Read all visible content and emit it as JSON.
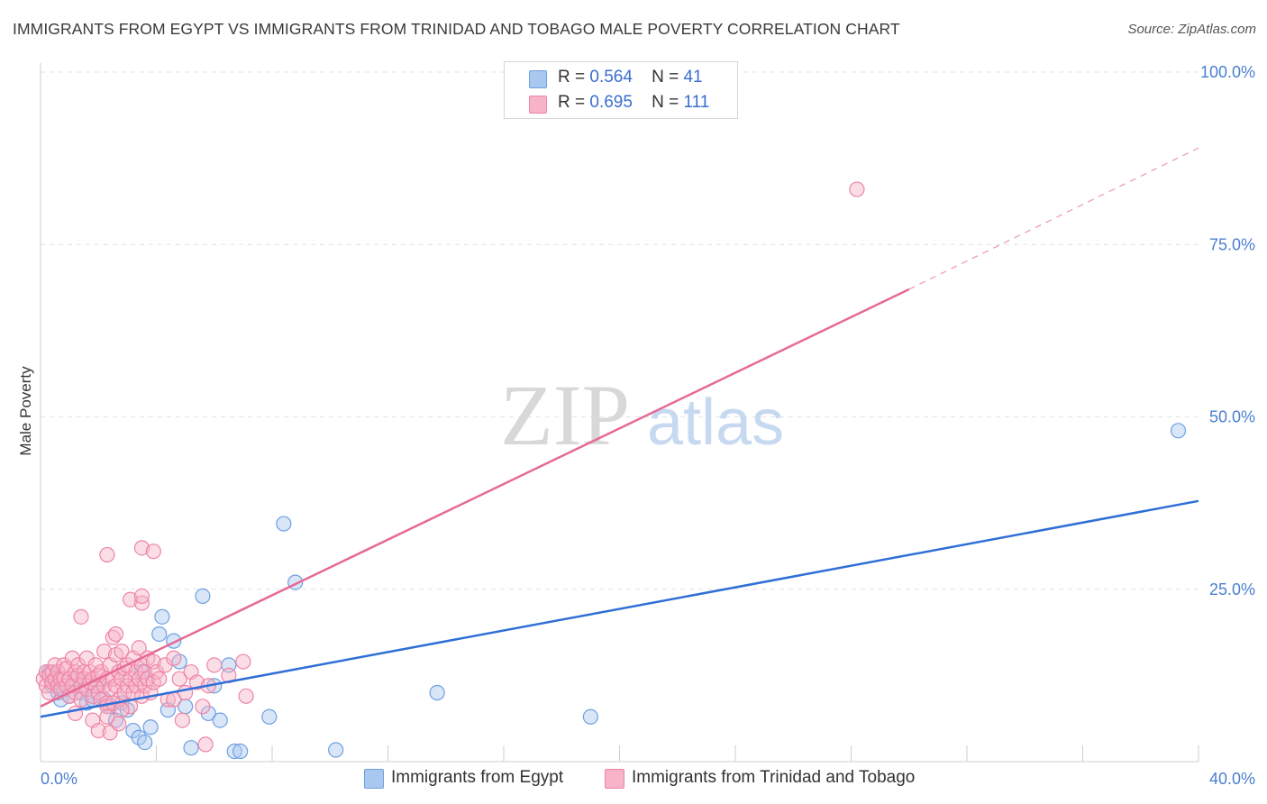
{
  "header": {
    "title": "IMMIGRANTS FROM EGYPT VS IMMIGRANTS FROM TRINIDAD AND TOBAGO MALE POVERTY CORRELATION CHART",
    "source": "Source: ZipAtlas.com"
  },
  "legend_stats": {
    "r_label": "R =",
    "n_label": "N =",
    "rows": [
      {
        "series": "Immigrants from Egypt",
        "r": "0.564",
        "n": "41",
        "color": "#a8c8f0"
      },
      {
        "series": "Immigrants from Trinidad and Tobago",
        "r": "0.695",
        "n": "111",
        "color": "#f7b3c7"
      }
    ]
  },
  "watermark": {
    "zip": "ZIP",
    "atlas": "atlas"
  },
  "chart_data": {
    "type": "scatter",
    "title": "IMMIGRANTS FROM EGYPT VS IMMIGRANTS FROM TRINIDAD AND TOBAGO MALE POVERTY CORRELATION CHART",
    "xlabel": "",
    "ylabel": "Male Poverty",
    "xlim": [
      0,
      40
    ],
    "ylim": [
      0,
      105
    ],
    "x_tick_labels": [
      "0.0%",
      "40.0%"
    ],
    "y_ticks": [
      25,
      50,
      75,
      100
    ],
    "y_tick_labels": [
      "25.0%",
      "50.0%",
      "75.0%",
      "100.0%"
    ],
    "grid": true,
    "series": [
      {
        "name": "Immigrants from Egypt",
        "color": "#a8c8f0",
        "stroke": "#6f9fe0",
        "trend": {
          "x0": 0,
          "y0": 6.5,
          "x1": 40,
          "y1": 37.8,
          "color": "#2f6fd6"
        },
        "points": [
          [
            0.3,
            13
          ],
          [
            0.4,
            11
          ],
          [
            0.6,
            10
          ],
          [
            0.7,
            9
          ],
          [
            0.8,
            10.5
          ],
          [
            1.0,
            9.5
          ],
          [
            1.2,
            12
          ],
          [
            1.4,
            10
          ],
          [
            1.6,
            8.5
          ],
          [
            1.8,
            9
          ],
          [
            2.0,
            11
          ],
          [
            2.2,
            9
          ],
          [
            2.4,
            8
          ],
          [
            2.6,
            6
          ],
          [
            2.8,
            8.5
          ],
          [
            3.0,
            7.5
          ],
          [
            3.2,
            4.5
          ],
          [
            3.4,
            3.5
          ],
          [
            3.5,
            13
          ],
          [
            3.6,
            2.8
          ],
          [
            3.8,
            5
          ],
          [
            4.1,
            18.5
          ],
          [
            4.2,
            21
          ],
          [
            4.4,
            7.5
          ],
          [
            4.6,
            17.5
          ],
          [
            4.8,
            14.5
          ],
          [
            5.0,
            8
          ],
          [
            5.2,
            2
          ],
          [
            5.6,
            24
          ],
          [
            5.8,
            7
          ],
          [
            6.0,
            11
          ],
          [
            6.2,
            6
          ],
          [
            6.5,
            14
          ],
          [
            6.7,
            1.5
          ],
          [
            6.9,
            1.5
          ],
          [
            7.9,
            6.5
          ],
          [
            8.4,
            34.5
          ],
          [
            8.8,
            26
          ],
          [
            10.2,
            1.7
          ],
          [
            13.7,
            10
          ],
          [
            19,
            6.5
          ],
          [
            39.3,
            48
          ]
        ]
      },
      {
        "name": "Immigrants from Trinidad and Tobago",
        "color": "#f7b3c7",
        "stroke": "#ee85a6",
        "trend": {
          "x0": 0,
          "y0": 8,
          "x1": 30,
          "y1": 68.5,
          "dash_x1": 40,
          "dash_y1": 89,
          "color": "#e66a97"
        },
        "points": [
          [
            0.1,
            12
          ],
          [
            0.2,
            13
          ],
          [
            0.2,
            11
          ],
          [
            0.3,
            12.5
          ],
          [
            0.3,
            10
          ],
          [
            0.4,
            13
          ],
          [
            0.4,
            11.5
          ],
          [
            0.5,
            12
          ],
          [
            0.5,
            14
          ],
          [
            0.6,
            11
          ],
          [
            0.6,
            13
          ],
          [
            0.7,
            12
          ],
          [
            0.7,
            10.5
          ],
          [
            0.8,
            14
          ],
          [
            0.8,
            12
          ],
          [
            0.9,
            11
          ],
          [
            0.9,
            13.5
          ],
          [
            1.0,
            12
          ],
          [
            1.0,
            9.5
          ],
          [
            1.1,
            15
          ],
          [
            1.1,
            11
          ],
          [
            1.2,
            13
          ],
          [
            1.2,
            10
          ],
          [
            1.3,
            12.5
          ],
          [
            1.3,
            14
          ],
          [
            1.4,
            11
          ],
          [
            1.4,
            9
          ],
          [
            1.5,
            13
          ],
          [
            1.5,
            12
          ],
          [
            1.6,
            10.5
          ],
          [
            1.6,
            15
          ],
          [
            1.7,
            11.5
          ],
          [
            1.7,
            13
          ],
          [
            1.8,
            9.5
          ],
          [
            1.8,
            12
          ],
          [
            1.9,
            11
          ],
          [
            1.9,
            14
          ],
          [
            2.0,
            10
          ],
          [
            2.0,
            12.5
          ],
          [
            2.1,
            13
          ],
          [
            2.1,
            9
          ],
          [
            2.2,
            11
          ],
          [
            2.2,
            16
          ],
          [
            2.3,
            12
          ],
          [
            2.3,
            8.5
          ],
          [
            2.4,
            14
          ],
          [
            2.4,
            10.5
          ],
          [
            2.5,
            12
          ],
          [
            2.5,
            18
          ],
          [
            2.6,
            11
          ],
          [
            2.6,
            15.5
          ],
          [
            2.7,
            13
          ],
          [
            2.7,
            9
          ],
          [
            2.8,
            12
          ],
          [
            2.8,
            16
          ],
          [
            2.9,
            10
          ],
          [
            2.9,
            13.5
          ],
          [
            3.0,
            11
          ],
          [
            3.0,
            14
          ],
          [
            3.1,
            12
          ],
          [
            3.1,
            8
          ],
          [
            3.2,
            15
          ],
          [
            3.2,
            10
          ],
          [
            3.3,
            13
          ],
          [
            3.3,
            11
          ],
          [
            3.4,
            16.5
          ],
          [
            3.4,
            12
          ],
          [
            3.5,
            14
          ],
          [
            3.5,
            9.5
          ],
          [
            3.6,
            13
          ],
          [
            3.6,
            11
          ],
          [
            3.7,
            15
          ],
          [
            3.7,
            12
          ],
          [
            3.8,
            10
          ],
          [
            3.9,
            14.5
          ],
          [
            3.9,
            11.5
          ],
          [
            4.0,
            13
          ],
          [
            4.1,
            12
          ],
          [
            4.3,
            14
          ],
          [
            4.4,
            9
          ],
          [
            4.6,
            15
          ],
          [
            4.8,
            12
          ],
          [
            5.0,
            10
          ],
          [
            5.2,
            13
          ],
          [
            5.4,
            11.5
          ],
          [
            5.6,
            8
          ],
          [
            5.8,
            11
          ],
          [
            6.0,
            14
          ],
          [
            6.5,
            12.5
          ],
          [
            7.0,
            14.5
          ],
          [
            7.1,
            9.5
          ],
          [
            1.4,
            21
          ],
          [
            1.8,
            6
          ],
          [
            2.0,
            4.5
          ],
          [
            2.4,
            4.2
          ],
          [
            2.6,
            18.5
          ],
          [
            2.3,
            8
          ],
          [
            2.5,
            8.5
          ],
          [
            2.7,
            5.5
          ],
          [
            2.3,
            6.5
          ],
          [
            2.8,
            7.5
          ],
          [
            1.2,
            7
          ],
          [
            2.3,
            30
          ],
          [
            3.1,
            23.5
          ],
          [
            3.5,
            23
          ],
          [
            3.5,
            24
          ],
          [
            3.5,
            31
          ],
          [
            3.9,
            30.5
          ],
          [
            4.6,
            9
          ],
          [
            4.9,
            6
          ],
          [
            5.7,
            2.5
          ],
          [
            28.2,
            83
          ]
        ]
      }
    ]
  },
  "bottom_legend": {
    "items": [
      {
        "label": "Immigrants from Egypt",
        "color": "#a8c8f0"
      },
      {
        "label": "Immigrants from Trinidad and Tobago",
        "color": "#f7b3c7"
      }
    ]
  }
}
